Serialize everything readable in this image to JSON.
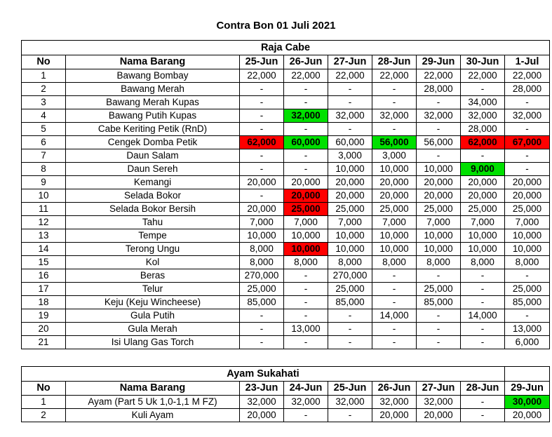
{
  "title": "Contra Bon 01 Juli 2021",
  "raja": {
    "section": "Raja Cabe",
    "headers": [
      "No",
      "Nama Barang",
      "25-Jun",
      "26-Jun",
      "27-Jun",
      "28-Jun",
      "29-Jun",
      "30-Jun",
      "1-Jul"
    ],
    "rows": [
      {
        "no": "1",
        "name": "Bawang Bombay",
        "v": [
          "22,000",
          "22,000",
          "22,000",
          "22,000",
          "22,000",
          "22,000",
          "22,000"
        ]
      },
      {
        "no": "2",
        "name": "Bawang Merah",
        "v": [
          "-",
          "-",
          "-",
          "-",
          "28,000",
          "-",
          "28,000"
        ]
      },
      {
        "no": "3",
        "name": "Bawang Merah Kupas",
        "v": [
          "-",
          "-",
          "-",
          "-",
          "-",
          "34,000",
          "-"
        ]
      },
      {
        "no": "4",
        "name": "Bawang Putih Kupas",
        "v": [
          "-",
          "32,000",
          "32,000",
          "32,000",
          "32,000",
          "32,000",
          "32,000"
        ]
      },
      {
        "no": "5",
        "name": "Cabe Keriting Petik (RnD)",
        "v": [
          "-",
          "-",
          "-",
          "-",
          "-",
          "28,000",
          "-"
        ]
      },
      {
        "no": "6",
        "name": "Cengek Domba Petik",
        "v": [
          "62,000",
          "60,000",
          "60,000",
          "56,000",
          "56,000",
          "62,000",
          "67,000"
        ]
      },
      {
        "no": "7",
        "name": "Daun Salam",
        "v": [
          "-",
          "-",
          "3,000",
          "3,000",
          "-",
          "-",
          "-"
        ]
      },
      {
        "no": "8",
        "name": "Daun Sereh",
        "v": [
          "-",
          "-",
          "10,000",
          "10,000",
          "10,000",
          "9,000",
          "-"
        ]
      },
      {
        "no": "9",
        "name": "Kemangi",
        "v": [
          "20,000",
          "20,000",
          "20,000",
          "20,000",
          "20,000",
          "20,000",
          "20,000"
        ]
      },
      {
        "no": "10",
        "name": "Selada Bokor",
        "v": [
          "-",
          "20,000",
          "20,000",
          "20,000",
          "20,000",
          "20,000",
          "20,000"
        ]
      },
      {
        "no": "11",
        "name": "Selada Bokor Bersih",
        "v": [
          "20,000",
          "25,000",
          "25,000",
          "25,000",
          "25,000",
          "25,000",
          "25,000"
        ]
      },
      {
        "no": "12",
        "name": "Tahu",
        "v": [
          "7,000",
          "7,000",
          "7,000",
          "7,000",
          "7,000",
          "7,000",
          "7,000"
        ]
      },
      {
        "no": "13",
        "name": "Tempe",
        "v": [
          "10,000",
          "10,000",
          "10,000",
          "10,000",
          "10,000",
          "10,000",
          "10,000"
        ]
      },
      {
        "no": "14",
        "name": "Terong Ungu",
        "v": [
          "8,000",
          "10,000",
          "10,000",
          "10,000",
          "10,000",
          "10,000",
          "10,000"
        ]
      },
      {
        "no": "15",
        "name": "Kol",
        "v": [
          "8,000",
          "8,000",
          "8,000",
          "8,000",
          "8,000",
          "8,000",
          "8,000"
        ]
      },
      {
        "no": "16",
        "name": "Beras",
        "v": [
          "270,000",
          "-",
          "270,000",
          "-",
          "-",
          "-",
          "-"
        ]
      },
      {
        "no": "17",
        "name": "Telur",
        "v": [
          "25,000",
          "-",
          "25,000",
          "-",
          "25,000",
          "-",
          "25,000"
        ]
      },
      {
        "no": "18",
        "name": "Keju (Keju Wincheese)",
        "v": [
          "85,000",
          "-",
          "85,000",
          "-",
          "85,000",
          "-",
          "85,000"
        ]
      },
      {
        "no": "19",
        "name": "Gula Putih",
        "v": [
          "-",
          "-",
          "-",
          "14,000",
          "-",
          "14,000",
          "-"
        ]
      },
      {
        "no": "20",
        "name": "Gula Merah",
        "v": [
          "-",
          "13,000",
          "-",
          "-",
          "-",
          "-",
          "13,000"
        ]
      },
      {
        "no": "21",
        "name": "Isi Ulang Gas Torch",
        "v": [
          "-",
          "-",
          "-",
          "-",
          "-",
          "-",
          "6,000"
        ]
      }
    ],
    "highlights": [
      {
        "row": 3,
        "col": 1,
        "color": "green"
      },
      {
        "row": 5,
        "col": 0,
        "color": "red"
      },
      {
        "row": 5,
        "col": 1,
        "color": "green"
      },
      {
        "row": 5,
        "col": 3,
        "color": "green"
      },
      {
        "row": 5,
        "col": 5,
        "color": "red"
      },
      {
        "row": 5,
        "col": 6,
        "color": "red"
      },
      {
        "row": 7,
        "col": 5,
        "color": "green"
      },
      {
        "row": 9,
        "col": 1,
        "color": "red"
      },
      {
        "row": 10,
        "col": 1,
        "color": "red"
      },
      {
        "row": 13,
        "col": 1,
        "color": "red"
      }
    ]
  },
  "ayam": {
    "section": "Ayam Sukahati",
    "headers": [
      "No",
      "Nama Barang",
      "23-Jun",
      "24-Jun",
      "25-Jun",
      "26-Jun",
      "27-Jun",
      "28-Jun",
      "29-Jun"
    ],
    "rows": [
      {
        "no": "1",
        "name": "Ayam (Part 5 Uk 1,0-1,1 M FZ)",
        "v": [
          "32,000",
          "32,000",
          "32,000",
          "32,000",
          "32,000",
          "-",
          "30,000"
        ]
      },
      {
        "no": "2",
        "name": "Kuli Ayam",
        "v": [
          "20,000",
          "-",
          "-",
          "20,000",
          "20,000",
          "-",
          "20,000"
        ]
      }
    ],
    "highlights": [
      {
        "row": 0,
        "col": 6,
        "color": "green"
      }
    ]
  },
  "colors": {
    "red": "#ff0000",
    "green": "#00e000"
  }
}
